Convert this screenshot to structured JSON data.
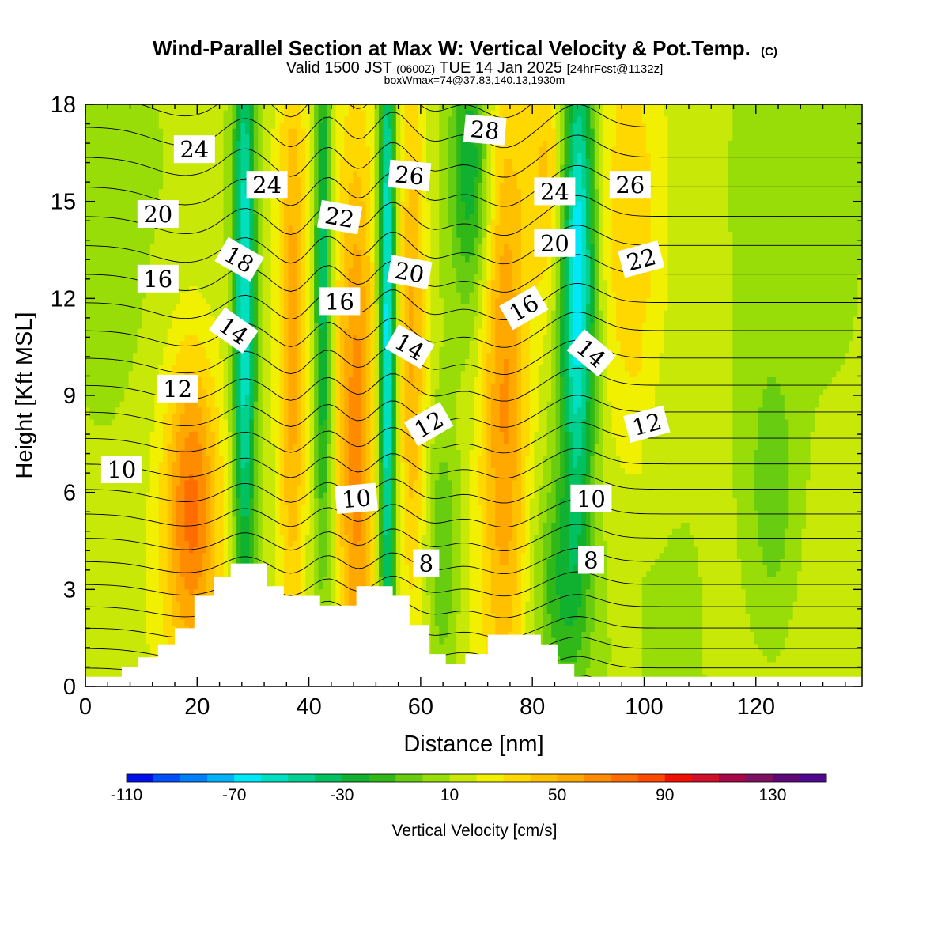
{
  "chart_data": {
    "type": "heatmap",
    "title": "Wind-Parallel Section at Max W: Vertical Velocity & Pot.Temp.",
    "title_mark": "(C)",
    "subtitle": {
      "prefix": "Valid 1500 JST",
      "utc": "(0600Z)",
      "date": "TUE 14 Jan 2025",
      "forecast": "[24hrFcst@1132z]"
    },
    "subtitle2": "boxWmax=74@37.83,140.13,1930m",
    "xlabel": "Distance [nm]",
    "ylabel": "Height [Kft MSL]",
    "xlim": [
      0,
      139
    ],
    "ylim": [
      0,
      18
    ],
    "x_ticks": [
      0,
      20,
      40,
      60,
      80,
      100,
      120
    ],
    "y_ticks": [
      0,
      3,
      6,
      9,
      12,
      15,
      18
    ],
    "colorbar": {
      "label": "Vertical Velocity [cm/s]",
      "min": -110,
      "step": 10,
      "tick_labels": [
        "-110",
        "-70",
        "-30",
        "10",
        "50",
        "90",
        "130"
      ],
      "tick_values": [
        -110,
        -70,
        -30,
        10,
        50,
        90,
        130
      ],
      "colors": [
        "#0010e8",
        "#0050f8",
        "#0080f8",
        "#00b0f8",
        "#00e8f8",
        "#00e0c0",
        "#00d090",
        "#00c060",
        "#10b030",
        "#30b818",
        "#68cc10",
        "#98dc08",
        "#c8e808",
        "#f0f000",
        "#ffd800",
        "#ffc000",
        "#ffa800",
        "#ff8c00",
        "#ff6c00",
        "#ff4800",
        "#f01000",
        "#d01028",
        "#a80848",
        "#801060",
        "#600878",
        "#500890"
      ]
    },
    "terrain_kft": [
      [
        0,
        0.3
      ],
      [
        6.5,
        0.6
      ],
      [
        9.5,
        0.9
      ],
      [
        13,
        1.3
      ],
      [
        16,
        1.8
      ],
      [
        19.5,
        2.8
      ],
      [
        23,
        3.4
      ],
      [
        26,
        3.8
      ],
      [
        30,
        3.8
      ],
      [
        32.5,
        3.1
      ],
      [
        35.5,
        2.8
      ],
      [
        39.5,
        2.8
      ],
      [
        42,
        2.5
      ],
      [
        46,
        2.5
      ],
      [
        48.5,
        3.1
      ],
      [
        51.5,
        3.1
      ],
      [
        55,
        2.8
      ],
      [
        58,
        1.9
      ],
      [
        61.5,
        1.0
      ],
      [
        64.5,
        0.7
      ],
      [
        68,
        1.0
      ],
      [
        72,
        1.6
      ],
      [
        78,
        1.6
      ],
      [
        81.5,
        1.3
      ],
      [
        84.5,
        0.7
      ],
      [
        87.5,
        0.3
      ],
      [
        139,
        0.3
      ]
    ],
    "updraft_bands": [
      {
        "x": 19,
        "y": 5.5,
        "w": 58,
        "sx": 3.5,
        "sy": 3.5
      },
      {
        "x": 37,
        "y": 10,
        "w": 40,
        "sx": 1.8,
        "sy": 7
      },
      {
        "x": 48.5,
        "y": 7,
        "w": 52,
        "sx": 2.5,
        "sy": 7
      },
      {
        "x": 58.5,
        "y": 11,
        "w": 38,
        "sx": 1.8,
        "sy": 6
      },
      {
        "x": 75,
        "y": 9.5,
        "w": 48,
        "sx": 3,
        "sy": 7
      },
      {
        "x": 83,
        "y": 16,
        "w": 30,
        "sx": 3,
        "sy": 3
      },
      {
        "x": 98,
        "y": 14,
        "w": 22,
        "sx": 4,
        "sy": 5
      }
    ],
    "downdraft_bands": [
      {
        "x": 28.5,
        "y": 12,
        "w": -75,
        "sx": 1.4,
        "sy": 7
      },
      {
        "x": 42.5,
        "y": 13,
        "w": -55,
        "sx": 1.1,
        "sy": 6
      },
      {
        "x": 54,
        "y": 11,
        "w": -85,
        "sx": 1.1,
        "sy": 8
      },
      {
        "x": 64,
        "y": 4,
        "w": -25,
        "sx": 2,
        "sy": 3
      },
      {
        "x": 69,
        "y": 16,
        "w": -40,
        "sx": 2.5,
        "sy": 3
      },
      {
        "x": 88,
        "y": 13,
        "w": -90,
        "sx": 2.2,
        "sy": 5.5
      },
      {
        "x": 85,
        "y": 3,
        "w": -30,
        "sx": 3.5,
        "sy": 2.5
      },
      {
        "x": 123,
        "y": 6,
        "w": -20,
        "sx": 3,
        "sy": 3
      },
      {
        "x": 3,
        "y": 14,
        "w": -12,
        "sx": 4,
        "sy": 4
      }
    ],
    "theta_contours": {
      "levels": [
        5,
        29
      ],
      "step": 0.5,
      "wave_components": [
        {
          "x0": 18,
          "amp": -0.5,
          "sx": 6
        },
        {
          "x0": 28,
          "amp": 0.35,
          "sx": 3
        },
        {
          "x0": 37,
          "amp": -0.55,
          "sx": 3
        },
        {
          "x0": 44,
          "amp": 0.45,
          "sx": 3
        },
        {
          "x0": 48.5,
          "amp": -0.5,
          "sx": 3
        },
        {
          "x0": 55,
          "amp": 0.5,
          "sx": 3
        },
        {
          "x0": 62,
          "amp": -0.4,
          "sx": 3.5
        },
        {
          "x0": 75,
          "amp": -0.55,
          "sx": 4
        },
        {
          "x0": 88,
          "amp": 0.6,
          "sx": 4
        }
      ]
    },
    "contour_labels": [
      {
        "text": "24",
        "x": 19.5,
        "y": 16.6,
        "rot": 0
      },
      {
        "text": "24",
        "x": 32.5,
        "y": 15.5,
        "rot": 0
      },
      {
        "text": "20",
        "x": 13,
        "y": 14.6,
        "rot": 0
      },
      {
        "text": "18",
        "x": 27.5,
        "y": 13.2,
        "rot": 30
      },
      {
        "text": "16",
        "x": 13,
        "y": 12.6,
        "rot": 0
      },
      {
        "text": "14",
        "x": 26.5,
        "y": 11.0,
        "rot": 35
      },
      {
        "text": "12",
        "x": 16.5,
        "y": 9.2,
        "rot": 0
      },
      {
        "text": "10",
        "x": 6.5,
        "y": 6.7,
        "rot": 0
      },
      {
        "text": "22",
        "x": 45.5,
        "y": 14.5,
        "rot": 10
      },
      {
        "text": "16",
        "x": 45.5,
        "y": 11.9,
        "rot": 0
      },
      {
        "text": "10",
        "x": 48.5,
        "y": 5.8,
        "rot": -5
      },
      {
        "text": "26",
        "x": 58,
        "y": 15.8,
        "rot": 5
      },
      {
        "text": "20",
        "x": 58,
        "y": 12.8,
        "rot": 10
      },
      {
        "text": "14",
        "x": 58,
        "y": 10.5,
        "rot": 30
      },
      {
        "text": "12",
        "x": 61.5,
        "y": 8.1,
        "rot": -30
      },
      {
        "text": "8",
        "x": 61,
        "y": 3.8,
        "rot": 0
      },
      {
        "text": "28",
        "x": 71.5,
        "y": 17.2,
        "rot": 5
      },
      {
        "text": "24",
        "x": 84,
        "y": 15.3,
        "rot": 0
      },
      {
        "text": "20",
        "x": 84,
        "y": 13.7,
        "rot": 0
      },
      {
        "text": "16",
        "x": 78.5,
        "y": 11.7,
        "rot": -30
      },
      {
        "text": "10",
        "x": 90.5,
        "y": 5.8,
        "rot": 0
      },
      {
        "text": "8",
        "x": 90.5,
        "y": 3.9,
        "rot": 0
      },
      {
        "text": "14",
        "x": 90.5,
        "y": 10.3,
        "rot": 40
      },
      {
        "text": "26",
        "x": 97.5,
        "y": 15.5,
        "rot": 0
      },
      {
        "text": "22",
        "x": 99.5,
        "y": 13.2,
        "rot": -15
      },
      {
        "text": "12",
        "x": 100.5,
        "y": 8.1,
        "rot": -15
      }
    ]
  }
}
